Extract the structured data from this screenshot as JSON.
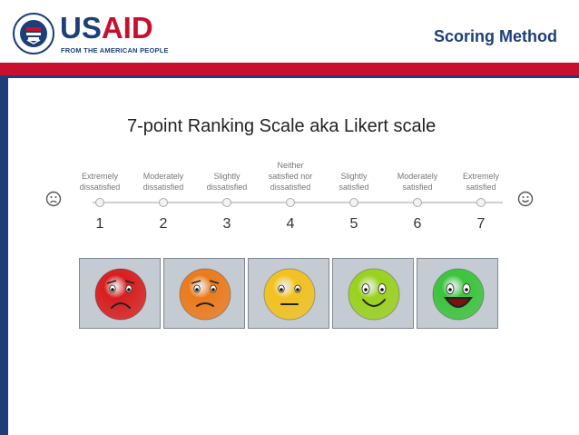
{
  "header": {
    "logo_text_blue": "US",
    "logo_text_red": "AID",
    "logo_tagline": "FROM THE AMERICAN PEOPLE",
    "seal_text": "UNITED STATES AGENCY FOR INTERNATIONAL DEVELOPMENT",
    "section_title": "Scoring Method"
  },
  "slide": {
    "title": "7-point Ranking Scale aka Likert scale"
  },
  "scale": {
    "left_face_icon": "frown-outline-icon",
    "right_face_icon": "smile-outline-icon",
    "points": [
      {
        "label": "Extremely\ndissatisfied",
        "number": "1"
      },
      {
        "label": "Moderately\ndissatisfied",
        "number": "2"
      },
      {
        "label": "Slightly\ndissatisfied",
        "number": "3"
      },
      {
        "label": "Neither\nsatisfied nor\ndissatisfied",
        "number": "4"
      },
      {
        "label": "Slightly\nsatisfied",
        "number": "5"
      },
      {
        "label": "Moderately\nsatisfied",
        "number": "6"
      },
      {
        "label": "Extremely\nsatisfied",
        "number": "7"
      }
    ]
  },
  "faces": [
    {
      "icon": "very-sad-face-icon",
      "color": "#d81e1e",
      "mood": "very-sad"
    },
    {
      "icon": "sad-face-icon",
      "color": "#ec7a1c",
      "mood": "sad"
    },
    {
      "icon": "neutral-face-icon",
      "color": "#f2c21f",
      "mood": "neutral"
    },
    {
      "icon": "happy-face-icon",
      "color": "#9ad21c",
      "mood": "happy"
    },
    {
      "icon": "very-happy-face-icon",
      "color": "#3cc43c",
      "mood": "very-happy"
    }
  ],
  "colors": {
    "brand_blue": "#1c3f7a",
    "brand_red": "#c8102e"
  }
}
